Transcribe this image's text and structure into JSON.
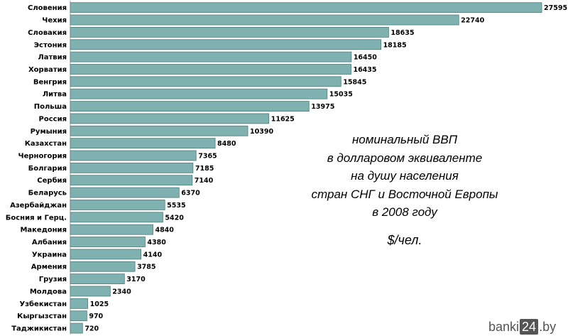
{
  "chart_data": {
    "type": "bar",
    "orientation": "horizontal",
    "title_lines": [
      "номинальный ВВП",
      "в долларовом эквиваленте",
      "на душу населения",
      "стран СНГ и Восточной Европы",
      "в 2008 году"
    ],
    "unit": "$/чел.",
    "categories": [
      "Словения",
      "Чехия",
      "Словакия",
      "Эстония",
      "Латвия",
      "Хорватия",
      "Венгрия",
      "Литва",
      "Польша",
      "Россия",
      "Румыния",
      "Казахстан",
      "Черногория",
      "Болгария",
      "Сербия",
      "Беларусь",
      "Азербайджан",
      "Босния и Герц.",
      "Македония",
      "Албания",
      "Украина",
      "Армения",
      "Грузия",
      "Молдова",
      "Узбекистан",
      "Кыргызстан",
      "Таджикистан"
    ],
    "values": [
      27595,
      22740,
      18635,
      18185,
      16450,
      16435,
      15845,
      15035,
      13975,
      11625,
      10390,
      8480,
      7365,
      7185,
      7140,
      6370,
      5535,
      5420,
      4840,
      4380,
      4140,
      3785,
      3170,
      2340,
      1025,
      970,
      720
    ],
    "xlim": [
      0,
      27595
    ],
    "grid": false,
    "colors": {
      "bar": "#7fb1b0",
      "bar_edge": "#4d7d7c"
    }
  },
  "watermark": {
    "left": "banki",
    "box": "24",
    "right": ".by"
  }
}
